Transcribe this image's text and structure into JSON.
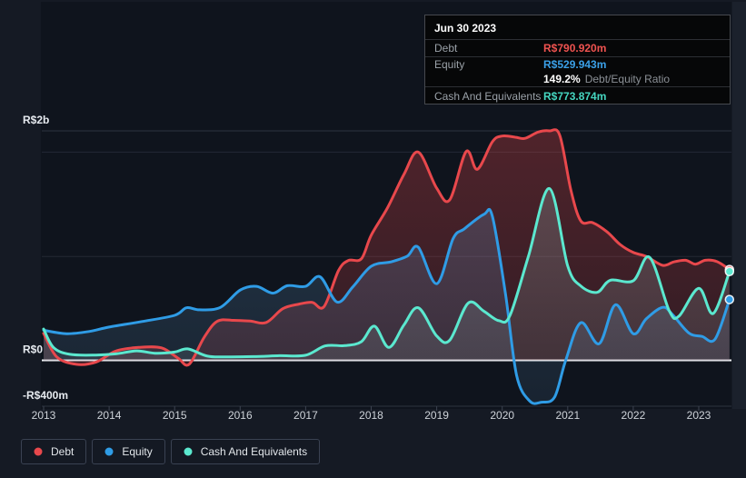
{
  "colors": {
    "debt": "#e8484c",
    "equity": "#2f9ce6",
    "cash": "#5be8cf",
    "debt_fill": "#e4474b",
    "equity_fill": "#6aa7d8",
    "cash_fill": "#8fa3a6",
    "zero_line": "#eef1f4",
    "grid_major": "#2c3340",
    "grid_minor": "#232935",
    "plot_bg": "#0f141d",
    "page_bg": "#151a24",
    "right_gutter_bg": "#1b212c",
    "axis_text": "#ced3d9",
    "y_label_text": "#e6eaef"
  },
  "tooltip": {
    "date": "Jun 30 2023",
    "debt_label": "Debt",
    "debt_value": "R$790.920m",
    "equity_label": "Equity",
    "equity_value": "R$529.943m",
    "ratio_value": "149.2%",
    "ratio_label": "Debt/Equity Ratio",
    "cash_label": "Cash And Equivalents",
    "cash_value": "R$773.874m"
  },
  "legend": {
    "items": [
      {
        "label": "Debt",
        "color_key": "debt"
      },
      {
        "label": "Equity",
        "color_key": "equity"
      },
      {
        "label": "Cash And Equivalents",
        "color_key": "cash"
      }
    ]
  },
  "chart_data": {
    "type": "area",
    "unit": "R$ millions",
    "xlim": [
      2012.958,
      2023.5
    ],
    "ylim": [
      -424,
      3125
    ],
    "x_ticks": [
      "2013",
      "2014",
      "2015",
      "2016",
      "2017",
      "2018",
      "2019",
      "2020",
      "2021",
      "2022",
      "2023"
    ],
    "y_gridlines": [
      {
        "value": 2000,
        "label": "R$2b",
        "major": true
      },
      {
        "value": 1815,
        "label": "",
        "major": false
      },
      {
        "value": 905,
        "label": "",
        "major": false
      },
      {
        "value": 0,
        "label": "R$0",
        "major": true,
        "zero": true
      },
      {
        "value": -400,
        "label": "-R$400m",
        "major": true
      }
    ],
    "legend_position": "bottom-left",
    "series": [
      {
        "name": "Debt",
        "color_key": "debt",
        "fill_key": "debt_fill",
        "points": [
          [
            2013.0,
            235
          ],
          [
            2013.2,
            30
          ],
          [
            2013.5,
            -35
          ],
          [
            2013.8,
            -15
          ],
          [
            2014.1,
            80
          ],
          [
            2014.45,
            112
          ],
          [
            2014.8,
            108
          ],
          [
            2015.05,
            20
          ],
          [
            2015.22,
            -35
          ],
          [
            2015.45,
            200
          ],
          [
            2015.65,
            340
          ],
          [
            2015.9,
            348
          ],
          [
            2016.15,
            342
          ],
          [
            2016.4,
            330
          ],
          [
            2016.65,
            450
          ],
          [
            2016.9,
            490
          ],
          [
            2017.1,
            505
          ],
          [
            2017.28,
            468
          ],
          [
            2017.5,
            780
          ],
          [
            2017.65,
            870
          ],
          [
            2017.85,
            885
          ],
          [
            2018.0,
            1090
          ],
          [
            2018.25,
            1330
          ],
          [
            2018.5,
            1620
          ],
          [
            2018.72,
            1815
          ],
          [
            2019.0,
            1500
          ],
          [
            2019.2,
            1400
          ],
          [
            2019.45,
            1820
          ],
          [
            2019.62,
            1665
          ],
          [
            2019.85,
            1905
          ],
          [
            2020.0,
            1955
          ],
          [
            2020.2,
            1945
          ],
          [
            2020.35,
            1935
          ],
          [
            2020.55,
            1990
          ],
          [
            2020.72,
            2000
          ],
          [
            2020.88,
            1960
          ],
          [
            2021.05,
            1480
          ],
          [
            2021.2,
            1215
          ],
          [
            2021.38,
            1200
          ],
          [
            2021.6,
            1120
          ],
          [
            2021.8,
            1010
          ],
          [
            2022.0,
            940
          ],
          [
            2022.2,
            905
          ],
          [
            2022.45,
            828
          ],
          [
            2022.62,
            858
          ],
          [
            2022.8,
            872
          ],
          [
            2022.95,
            838
          ],
          [
            2023.1,
            872
          ],
          [
            2023.28,
            860
          ],
          [
            2023.47,
            790.92
          ]
        ]
      },
      {
        "name": "Equity",
        "color_key": "equity",
        "fill_key": "equity_fill",
        "points": [
          [
            2013.0,
            262
          ],
          [
            2013.35,
            232
          ],
          [
            2013.7,
            252
          ],
          [
            2014.0,
            290
          ],
          [
            2014.5,
            338
          ],
          [
            2015.0,
            392
          ],
          [
            2015.18,
            458
          ],
          [
            2015.38,
            440
          ],
          [
            2015.7,
            462
          ],
          [
            2016.0,
            612
          ],
          [
            2016.25,
            645
          ],
          [
            2016.5,
            585
          ],
          [
            2016.72,
            650
          ],
          [
            2017.0,
            645
          ],
          [
            2017.22,
            728
          ],
          [
            2017.48,
            508
          ],
          [
            2017.72,
            640
          ],
          [
            2018.0,
            820
          ],
          [
            2018.3,
            858
          ],
          [
            2018.55,
            908
          ],
          [
            2018.72,
            985
          ],
          [
            2019.0,
            668
          ],
          [
            2019.25,
            1060
          ],
          [
            2019.42,
            1145
          ],
          [
            2019.72,
            1272
          ],
          [
            2019.85,
            1255
          ],
          [
            2020.05,
            580
          ],
          [
            2020.22,
            -130
          ],
          [
            2020.42,
            -355
          ],
          [
            2020.6,
            -365
          ],
          [
            2020.8,
            -320
          ],
          [
            2020.97,
            0
          ],
          [
            2021.2,
            328
          ],
          [
            2021.48,
            145
          ],
          [
            2021.73,
            485
          ],
          [
            2022.0,
            232
          ],
          [
            2022.2,
            362
          ],
          [
            2022.45,
            462
          ],
          [
            2022.6,
            398
          ],
          [
            2022.85,
            238
          ],
          [
            2023.05,
            208
          ],
          [
            2023.25,
            185
          ],
          [
            2023.47,
            529.943
          ]
        ]
      },
      {
        "name": "Cash And Equivalents",
        "color_key": "cash",
        "fill_key": "cash_fill",
        "points": [
          [
            2013.0,
            272
          ],
          [
            2013.15,
            112
          ],
          [
            2013.4,
            52
          ],
          [
            2013.8,
            46
          ],
          [
            2014.1,
            56
          ],
          [
            2014.42,
            82
          ],
          [
            2014.7,
            62
          ],
          [
            2015.0,
            72
          ],
          [
            2015.2,
            100
          ],
          [
            2015.5,
            36
          ],
          [
            2015.8,
            30
          ],
          [
            2016.2,
            32
          ],
          [
            2016.6,
            40
          ],
          [
            2017.0,
            44
          ],
          [
            2017.3,
            126
          ],
          [
            2017.6,
            128
          ],
          [
            2017.85,
            162
          ],
          [
            2018.05,
            298
          ],
          [
            2018.27,
            112
          ],
          [
            2018.5,
            308
          ],
          [
            2018.72,
            458
          ],
          [
            2019.0,
            212
          ],
          [
            2019.2,
            176
          ],
          [
            2019.48,
            498
          ],
          [
            2019.72,
            428
          ],
          [
            2019.95,
            345
          ],
          [
            2020.12,
            392
          ],
          [
            2020.4,
            905
          ],
          [
            2020.72,
            1498
          ],
          [
            2021.0,
            822
          ],
          [
            2021.2,
            648
          ],
          [
            2021.45,
            592
          ],
          [
            2021.65,
            698
          ],
          [
            2022.0,
            694
          ],
          [
            2022.25,
            898
          ],
          [
            2022.55,
            432
          ],
          [
            2022.7,
            386
          ],
          [
            2023.0,
            628
          ],
          [
            2023.22,
            408
          ],
          [
            2023.47,
            773.874
          ]
        ]
      }
    ]
  }
}
